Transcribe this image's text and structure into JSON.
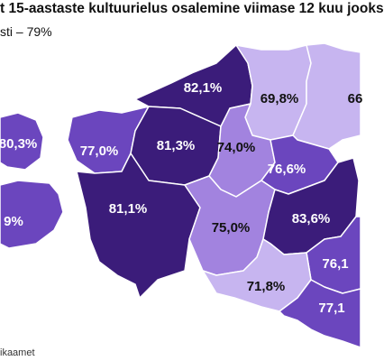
{
  "title": "t 15-aastaste kultuurielus osalemine viimase 12 kuu jooks",
  "subtitle": "sti – 79%",
  "source": "ikaamet",
  "colors": {
    "very_dark": "#3b1c7a",
    "dark": "#4a2a8e",
    "medium": "#6b46be",
    "light": "#a283df",
    "very_light": "#c7b5f0",
    "label_on_dark": "#ffffff",
    "label_on_light": "#111111"
  },
  "regions": [
    {
      "id": "harju",
      "value": "82,1%",
      "shade": "very_dark",
      "label_color": "label_on_dark"
    },
    {
      "id": "laane-viru",
      "value": "69,8%",
      "shade": "very_light",
      "label_color": "label_on_light"
    },
    {
      "id": "ida-viru",
      "value": "66",
      "shade": "very_light",
      "label_color": "label_on_light"
    },
    {
      "id": "hiiu",
      "value": "80,3%",
      "shade": "medium",
      "label_color": "label_on_dark"
    },
    {
      "id": "laane",
      "value": "77,0%",
      "shade": "medium",
      "label_color": "label_on_dark"
    },
    {
      "id": "rapla",
      "value": "81,3%",
      "shade": "very_dark",
      "label_color": "label_on_dark"
    },
    {
      "id": "jarva",
      "value": "74,0%",
      "shade": "light",
      "label_color": "label_on_light"
    },
    {
      "id": "jogeva",
      "value": "76,6%",
      "shade": "medium",
      "label_color": "label_on_dark"
    },
    {
      "id": "saare",
      "value": "9%",
      "shade": "medium",
      "label_color": "label_on_dark"
    },
    {
      "id": "parnu",
      "value": "81,1%",
      "shade": "very_dark",
      "label_color": "label_on_dark"
    },
    {
      "id": "viljandi",
      "value": "75,0%",
      "shade": "light",
      "label_color": "label_on_light"
    },
    {
      "id": "tartu",
      "value": "83,6%",
      "shade": "very_dark",
      "label_color": "label_on_dark"
    },
    {
      "id": "polva",
      "value": "76,1",
      "shade": "medium",
      "label_color": "label_on_dark"
    },
    {
      "id": "valga",
      "value": "71,8%",
      "shade": "very_light",
      "label_color": "label_on_light"
    },
    {
      "id": "voru",
      "value": "77,1",
      "shade": "medium",
      "label_color": "label_on_dark"
    }
  ]
}
